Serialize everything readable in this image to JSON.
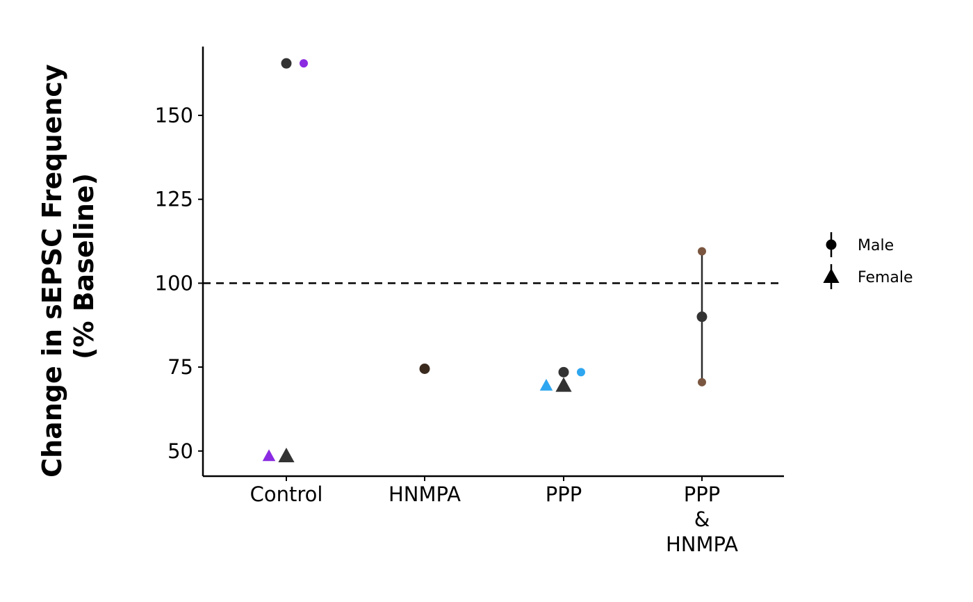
{
  "chart_data": {
    "type": "scatter",
    "title": "",
    "xlabel": "",
    "ylabel_lines": [
      "Change in sEPSC Frequency",
      "(% Baseline)"
    ],
    "categories": [
      {
        "key": "control",
        "lines": [
          "Control"
        ]
      },
      {
        "key": "hnmpa",
        "lines": [
          "HNMPA"
        ]
      },
      {
        "key": "ppp",
        "lines": [
          "PPP"
        ]
      },
      {
        "key": "ppp-hnmpa",
        "lines": [
          "PPP",
          "&",
          "HNMPA"
        ]
      }
    ],
    "ylim": [
      42.5,
      170.5
    ],
    "yticks": [
      50,
      75,
      100,
      125,
      150
    ],
    "reference_line": 100,
    "grid": false,
    "legend_position": "right",
    "legend": [
      {
        "label": "Male",
        "shape": "circle"
      },
      {
        "label": "Female",
        "shape": "triangle"
      }
    ],
    "points": [
      {
        "category": 0,
        "offset": 0,
        "y": 165.5,
        "shape": "circle",
        "color": "#333333",
        "size": "large"
      },
      {
        "category": 0,
        "offset": 1,
        "y": 165.5,
        "shape": "circle",
        "color": "#8a2be2",
        "size": "small"
      },
      {
        "category": 0,
        "offset": -1,
        "y": 48.5,
        "shape": "triangle",
        "color": "#8a2be2",
        "size": "small"
      },
      {
        "category": 0,
        "offset": 0,
        "y": 48.5,
        "shape": "triangle",
        "color": "#333333",
        "size": "large"
      },
      {
        "category": 1,
        "offset": 0,
        "y": 74.5,
        "shape": "circle",
        "color": "#3a2a1e",
        "size": "large"
      },
      {
        "category": 2,
        "offset": 0,
        "y": 73.5,
        "shape": "circle",
        "color": "#333333",
        "size": "large"
      },
      {
        "category": 2,
        "offset": 1,
        "y": 73.5,
        "shape": "circle",
        "color": "#2ea6f0",
        "size": "small"
      },
      {
        "category": 2,
        "offset": -1,
        "y": 69.5,
        "shape": "triangle",
        "color": "#2ea6f0",
        "size": "small"
      },
      {
        "category": 2,
        "offset": 0,
        "y": 69.5,
        "shape": "triangle",
        "color": "#333333",
        "size": "large"
      },
      {
        "category": 3,
        "offset": 0,
        "y": 109.5,
        "shape": "circle",
        "color": "#7a5640",
        "size": "small"
      },
      {
        "category": 3,
        "offset": 0,
        "y": 70.5,
        "shape": "circle",
        "color": "#7a5640",
        "size": "small"
      },
      {
        "category": 3,
        "offset": 0,
        "y": 90,
        "shape": "circle",
        "color": "#333333",
        "size": "large"
      }
    ],
    "error_bars": [
      {
        "category": 3,
        "low": 70.5,
        "high": 109.5,
        "center": 90
      }
    ]
  }
}
